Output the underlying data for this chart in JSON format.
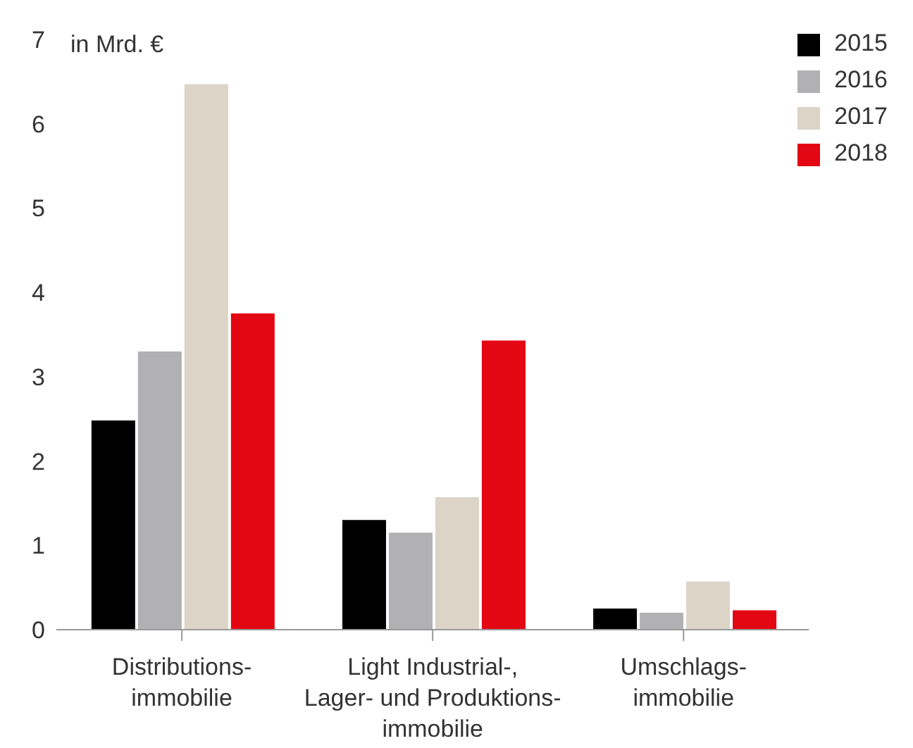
{
  "chart_data": {
    "type": "bar",
    "ylabel": "in Mrd. €",
    "categories": [
      "Distributions-\nimmobilie",
      "Light Industrial-,\nLager- und Produktions-\nimmobilie",
      "Umschlags-\nimmobilie"
    ],
    "series": [
      {
        "name": "2015",
        "color": "#000000",
        "values": [
          2.48,
          1.3,
          0.25
        ]
      },
      {
        "name": "2016",
        "color": "#b1b1b3",
        "values": [
          3.3,
          1.15,
          0.2
        ]
      },
      {
        "name": "2017",
        "color": "#dbd4c7",
        "values": [
          6.47,
          1.57,
          0.57
        ]
      },
      {
        "name": "2018",
        "color": "#e30613",
        "values": [
          3.75,
          3.43,
          0.23
        ]
      }
    ],
    "ylim": [
      0,
      7
    ],
    "yticks": [
      0,
      1,
      2,
      3,
      4,
      5,
      6,
      7
    ],
    "grid": false,
    "legend": "top right"
  }
}
